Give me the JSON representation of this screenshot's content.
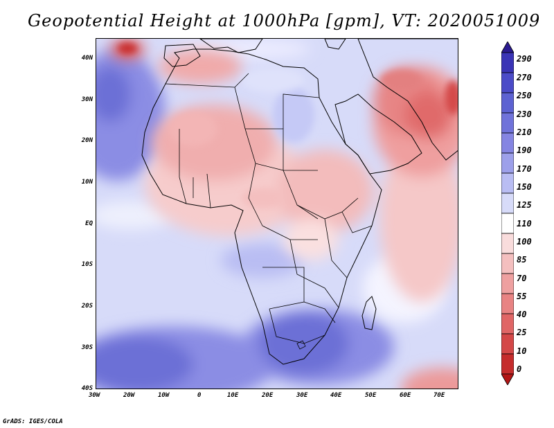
{
  "title": "Geopotential Height at 1000hPa [gpm], VT: 2020051009",
  "credit": "GrADS: IGES/COLA",
  "map": {
    "type": "filled-contour-map",
    "region": "Africa",
    "lon_range": [
      -30,
      75
    ],
    "lat_range": [
      -40,
      45
    ],
    "y_axis_labels": [
      "40N",
      "30N",
      "20N",
      "10N",
      "EQ",
      "10S",
      "20S",
      "30S",
      "40S"
    ],
    "x_axis_labels": [
      "30W",
      "20W",
      "10W",
      "0",
      "10E",
      "20E",
      "30E",
      "40E",
      "50E",
      "60E",
      "70E"
    ]
  },
  "colorbar": {
    "labels": [
      "290",
      "270",
      "250",
      "230",
      "210",
      "190",
      "170",
      "150",
      "125",
      "110",
      "100",
      "85",
      "70",
      "55",
      "40",
      "25",
      "10",
      "0"
    ],
    "colors": [
      "#2a1a90",
      "#3a34b6",
      "#4b4bc8",
      "#5d62d2",
      "#7073da",
      "#8585e2",
      "#9da0ea",
      "#b9bdf3",
      "#d7dbf9",
      "#ffffff",
      "#f9dcdc",
      "#f4bfbf",
      "#eea0a0",
      "#e88383",
      "#e06666",
      "#d44848",
      "#c52c2c",
      "#b31515"
    ]
  }
}
